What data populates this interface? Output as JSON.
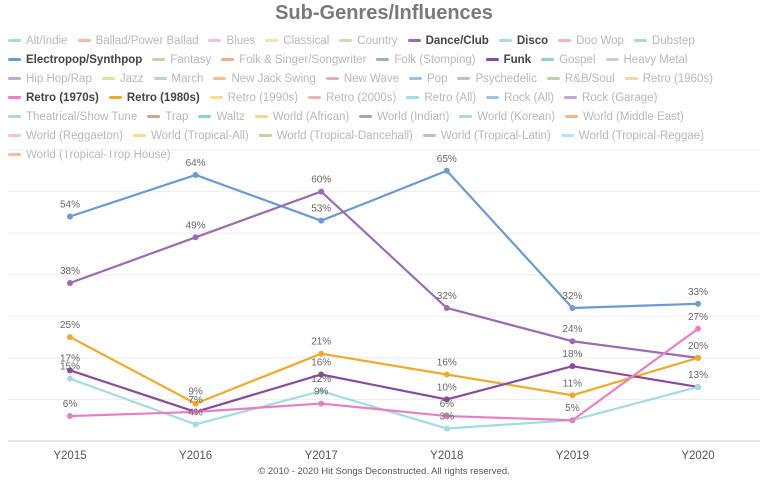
{
  "chart_data": {
    "type": "line",
    "title": "Sub-Genres/Influences",
    "x": [
      "Y2015",
      "Y2016",
      "Y2017",
      "Y2018",
      "Y2019",
      "Y2020"
    ],
    "ylim": [
      0,
      70
    ],
    "grid": true,
    "legend_placement": "top",
    "series": [
      {
        "name": "Electropop/Synthpop",
        "color": "#6b9bd1",
        "values": [
          54,
          64,
          53,
          65,
          32,
          33
        ]
      },
      {
        "name": "Dance/Club",
        "color": "#9c6bb5",
        "values": [
          38,
          49,
          60,
          32,
          24,
          20
        ]
      },
      {
        "name": "Retro (1980s)",
        "color": "#f0aa2a",
        "values": [
          25,
          9,
          21,
          16,
          11,
          20
        ]
      },
      {
        "name": "Funk",
        "color": "#8a4a9e",
        "values": [
          17,
          7,
          16,
          10,
          18,
          13
        ]
      },
      {
        "name": "Disco",
        "color": "#a3dce0",
        "values": [
          15,
          4,
          12,
          3,
          5,
          13
        ]
      },
      {
        "name": "Retro (1970s)",
        "color": "#e87fc6",
        "values": [
          6,
          7,
          9,
          6,
          5,
          27
        ]
      }
    ],
    "data_labels": {
      "Electropop/Synthpop": [
        "54%",
        "64%",
        "53%",
        "65%",
        "32%",
        "33%"
      ],
      "Dance/Club": [
        "38%",
        "49%",
        "60%",
        "32%",
        "24%",
        ""
      ],
      "Retro (1980s)": [
        "25%",
        "9%",
        "21%",
        "16%",
        "11%",
        "20%"
      ],
      "Funk": [
        "17%",
        "7%",
        "16%",
        "10%",
        "18%",
        "13%"
      ],
      "Disco": [
        "15%",
        "4%",
        "12%",
        "3%",
        "5%",
        ""
      ],
      "Retro (1970s)": [
        "6%",
        "",
        "9%",
        "6%",
        "",
        "27%"
      ]
    },
    "legend": [
      {
        "name": "Alt/Indie",
        "color": "#a3dce0",
        "active": false
      },
      {
        "name": "Ballad/Power Ballad",
        "color": "#f7b9a0",
        "active": false
      },
      {
        "name": "Blues",
        "color": "#f4c1d8",
        "active": false
      },
      {
        "name": "Classical",
        "color": "#f6e3a1",
        "active": false
      },
      {
        "name": "Country",
        "color": "#c9dfb0",
        "active": false
      },
      {
        "name": "Dance/Club",
        "color": "#9c6bb5",
        "active": true
      },
      {
        "name": "Disco",
        "color": "#a3dce0",
        "active": true
      },
      {
        "name": "Doo Wop",
        "color": "#f4b7b0",
        "active": false
      },
      {
        "name": "Dubstep",
        "color": "#a9dfbd",
        "active": false
      },
      {
        "name": "Electropop/Synthpop",
        "color": "#6b9bd1",
        "active": true
      },
      {
        "name": "Fantasy",
        "color": "#cfcfb0",
        "active": false
      },
      {
        "name": "Folk & Singer/Songwriter",
        "color": "#f7a98a",
        "active": false
      },
      {
        "name": "Folk (Stomping)",
        "color": "#9bb1c9",
        "active": false
      },
      {
        "name": "Funk",
        "color": "#8a4a9e",
        "active": true
      },
      {
        "name": "Gospel",
        "color": "#8fd5c9",
        "active": false
      },
      {
        "name": "Heavy Metal",
        "color": "#cfcfcf",
        "active": false
      },
      {
        "name": "Hip Hop/Rap",
        "color": "#c6a6d6",
        "active": false
      },
      {
        "name": "Jazz",
        "color": "#e6e0a0",
        "active": false
      },
      {
        "name": "March",
        "color": "#b9d0e9",
        "active": false
      },
      {
        "name": "New Jack Swing",
        "color": "#f6c08a",
        "active": false
      },
      {
        "name": "New Wave",
        "color": "#f2a9b8",
        "active": false
      },
      {
        "name": "Pop",
        "color": "#9cc3e6",
        "active": false
      },
      {
        "name": "Psychedelic",
        "color": "#c9b6dc",
        "active": false
      },
      {
        "name": "R&B/Soul",
        "color": "#b7d6a8",
        "active": false
      },
      {
        "name": "Retro (1960s)",
        "color": "#f5d6a8",
        "active": false
      },
      {
        "name": "Retro (1970s)",
        "color": "#e87fc6",
        "active": true
      },
      {
        "name": "Retro (1980s)",
        "color": "#f0aa2a",
        "active": true
      },
      {
        "name": "Retro (1990s)",
        "color": "#f3e08c",
        "active": false
      },
      {
        "name": "Retro (2000s)",
        "color": "#f4b0b0",
        "active": false
      },
      {
        "name": "Retro (All)",
        "color": "#a3dce0",
        "active": false
      },
      {
        "name": "Rock (All)",
        "color": "#9cc3e6",
        "active": false
      },
      {
        "name": "Rock (Garage)",
        "color": "#c6a6d6",
        "active": false
      },
      {
        "name": "Theatrical/Show Tune",
        "color": "#b9d0e9",
        "active": false
      },
      {
        "name": "Trap",
        "color": "#c8a98f",
        "active": false
      },
      {
        "name": "Waltz",
        "color": "#8fd5c9",
        "active": false
      },
      {
        "name": "World (African)",
        "color": "#f6d59a",
        "active": false
      },
      {
        "name": "World (Indian)",
        "color": "#a8a8a8",
        "active": false
      },
      {
        "name": "World (Korean)",
        "color": "#a9dfbd",
        "active": false
      },
      {
        "name": "World (Middle East)",
        "color": "#f6b58a",
        "active": false
      },
      {
        "name": "World (Reggaeton)",
        "color": "#f4c1d8",
        "active": false
      },
      {
        "name": "World (Tropical-All)",
        "color": "#f3e08c",
        "active": false
      },
      {
        "name": "World (Tropical-Dancehall)",
        "color": "#d8cba0",
        "active": false
      },
      {
        "name": "World (Tropical-Latin)",
        "color": "#c9b6dc",
        "active": false
      },
      {
        "name": "World (Tropical-Reggae)",
        "color": "#b9e3ef",
        "active": false
      },
      {
        "name": "World (Tropical-Trop House)",
        "color": "#f7b9a0",
        "active": false
      }
    ]
  },
  "footer": "© 2010 - 2020 Hit Songs Deconstructed. All rights reserved."
}
